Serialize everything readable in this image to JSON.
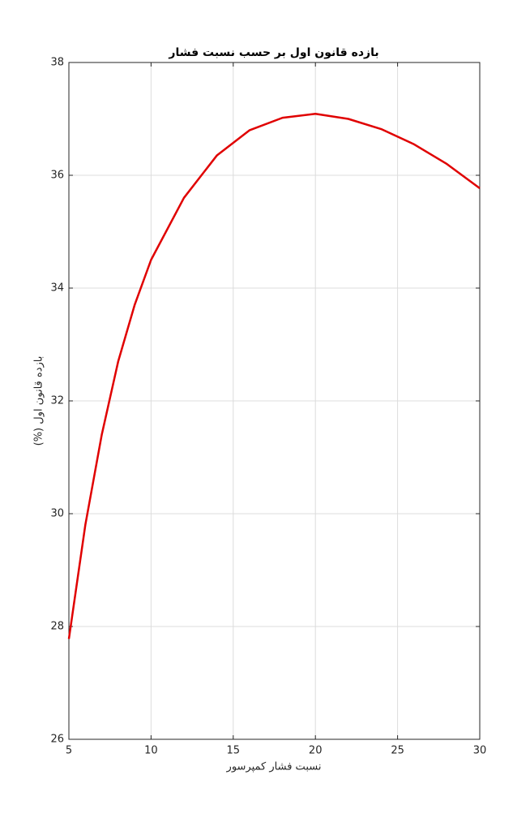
{
  "chart_data": {
    "type": "line",
    "title": "بازده قانون اول بر حسب نسبت فشار",
    "x_label": "نسبت فشار کمپرسور",
    "y_label": "بازده قانون اول (%)",
    "x": [
      5,
      6,
      7,
      8,
      9,
      10,
      12,
      14,
      16,
      18,
      20,
      22,
      24,
      26,
      28,
      30
    ],
    "series": [
      {
        "color": "#e00000",
        "values": [
          27.78,
          29.8,
          31.4,
          32.7,
          33.7,
          34.5,
          35.6,
          36.35,
          36.8,
          37.02,
          37.09,
          37.0,
          36.82,
          36.55,
          36.2,
          35.77
        ]
      }
    ],
    "xlim": [
      5,
      30
    ],
    "xticks": [
      5,
      10,
      15,
      20,
      25,
      30
    ],
    "ylim": [
      26,
      38
    ],
    "yticks": [
      26,
      28,
      30,
      32,
      34,
      36,
      38
    ],
    "grid": true
  }
}
